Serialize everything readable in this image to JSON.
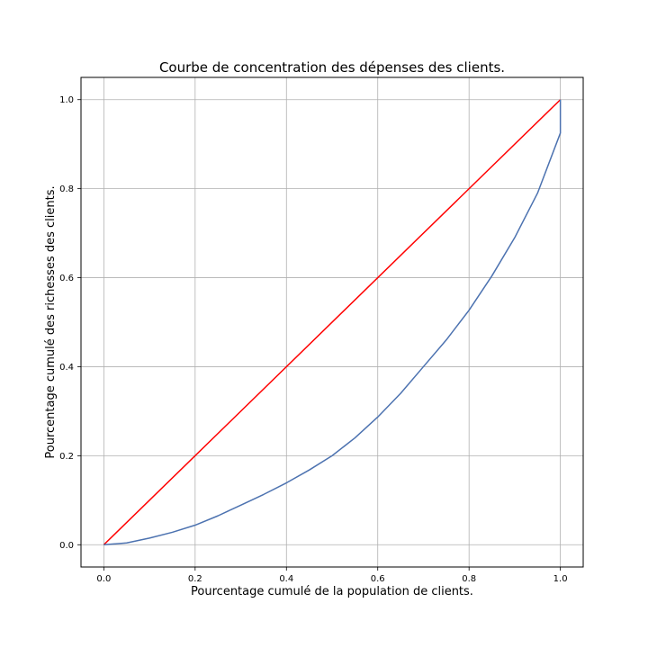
{
  "chart_data": {
    "type": "line",
    "title": "Courbe de concentration des dépenses des clients.",
    "xlabel": "Pourcentage cumulé de la population de clients.",
    "ylabel": "Pourcentage cumulé des richesses des clients.",
    "xlim": [
      -0.05,
      1.05
    ],
    "ylim": [
      -0.05,
      1.05
    ],
    "xticks": [
      "0.0",
      "0.2",
      "0.4",
      "0.6",
      "0.8",
      "1.0"
    ],
    "yticks": [
      "0.0",
      "0.2",
      "0.4",
      "0.6",
      "0.8",
      "1.0"
    ],
    "grid": true,
    "series": [
      {
        "color": "#ff0000",
        "x": [
          0,
          1
        ],
        "y": [
          0,
          1
        ]
      },
      {
        "color": "#4c72b0",
        "x": [
          0,
          0.05,
          0.1,
          0.15,
          0.2,
          0.25,
          0.3,
          0.35,
          0.4,
          0.45,
          0.5,
          0.55,
          0.6,
          0.65,
          0.7,
          0.75,
          0.8,
          0.85,
          0.9,
          0.95,
          1.0,
          1.0
        ],
        "y": [
          0,
          0.004,
          0.015,
          0.028,
          0.044,
          0.065,
          0.089,
          0.113,
          0.139,
          0.168,
          0.2,
          0.24,
          0.287,
          0.34,
          0.4,
          0.46,
          0.527,
          0.604,
          0.69,
          0.79,
          0.925,
          1.0
        ]
      }
    ]
  }
}
